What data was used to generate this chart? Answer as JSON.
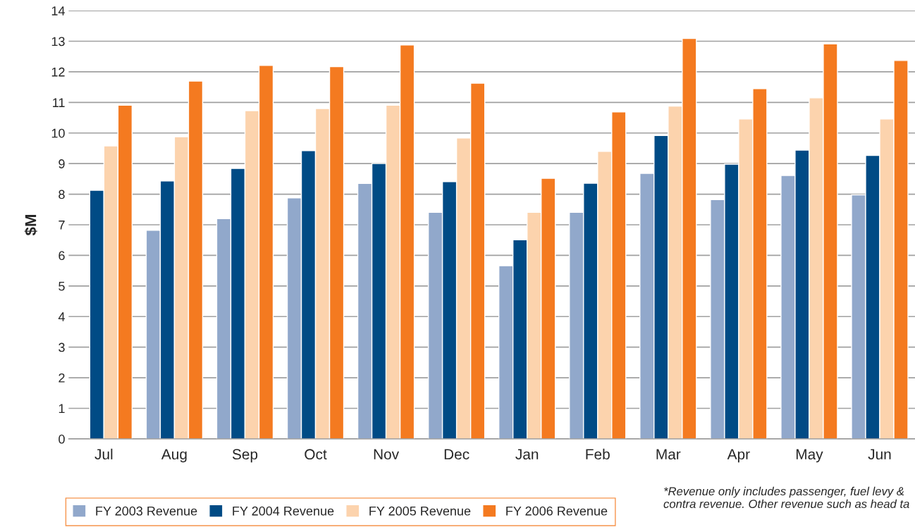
{
  "chart_data": {
    "type": "bar",
    "ylabel": "$M",
    "categories": [
      "Jul",
      "Aug",
      "Sep",
      "Oct",
      "Nov",
      "Dec",
      "Jan",
      "Feb",
      "Mar",
      "Apr",
      "May",
      "Jun"
    ],
    "series": [
      {
        "name": "FY 2003 Revenue",
        "color": "#91a8cb",
        "values": [
          null,
          6.82,
          7.2,
          7.88,
          8.35,
          7.41,
          5.66,
          7.41,
          8.68,
          7.82,
          8.61,
          7.98
        ]
      },
      {
        "name": "FY 2004 Revenue",
        "color": "#004b85",
        "values": [
          8.13,
          8.43,
          8.84,
          9.42,
          9.0,
          8.41,
          6.51,
          8.36,
          9.92,
          8.98,
          9.44,
          9.27
        ]
      },
      {
        "name": "FY 2005 Revenue",
        "color": "#fcd3ad",
        "values": [
          9.58,
          9.88,
          10.73,
          10.8,
          10.91,
          9.84,
          7.41,
          9.4,
          10.88,
          10.46,
          11.15,
          10.46
        ]
      },
      {
        "name": "FY 2006 Revenue",
        "color": "#f47a20",
        "values": [
          10.91,
          11.7,
          12.21,
          12.17,
          12.88,
          11.63,
          8.52,
          10.69,
          13.09,
          11.45,
          12.91,
          12.37
        ]
      }
    ],
    "ylim": [
      0,
      14
    ],
    "yticks": [
      0,
      1,
      2,
      3,
      4,
      5,
      6,
      7,
      8,
      9,
      10,
      11,
      12,
      13,
      14
    ],
    "grid": "y",
    "legend": "bottom left",
    "annotations": [
      "*Revenue only includes passenger, fuel levy & contra revenue. Other revenue such as head ta"
    ]
  }
}
